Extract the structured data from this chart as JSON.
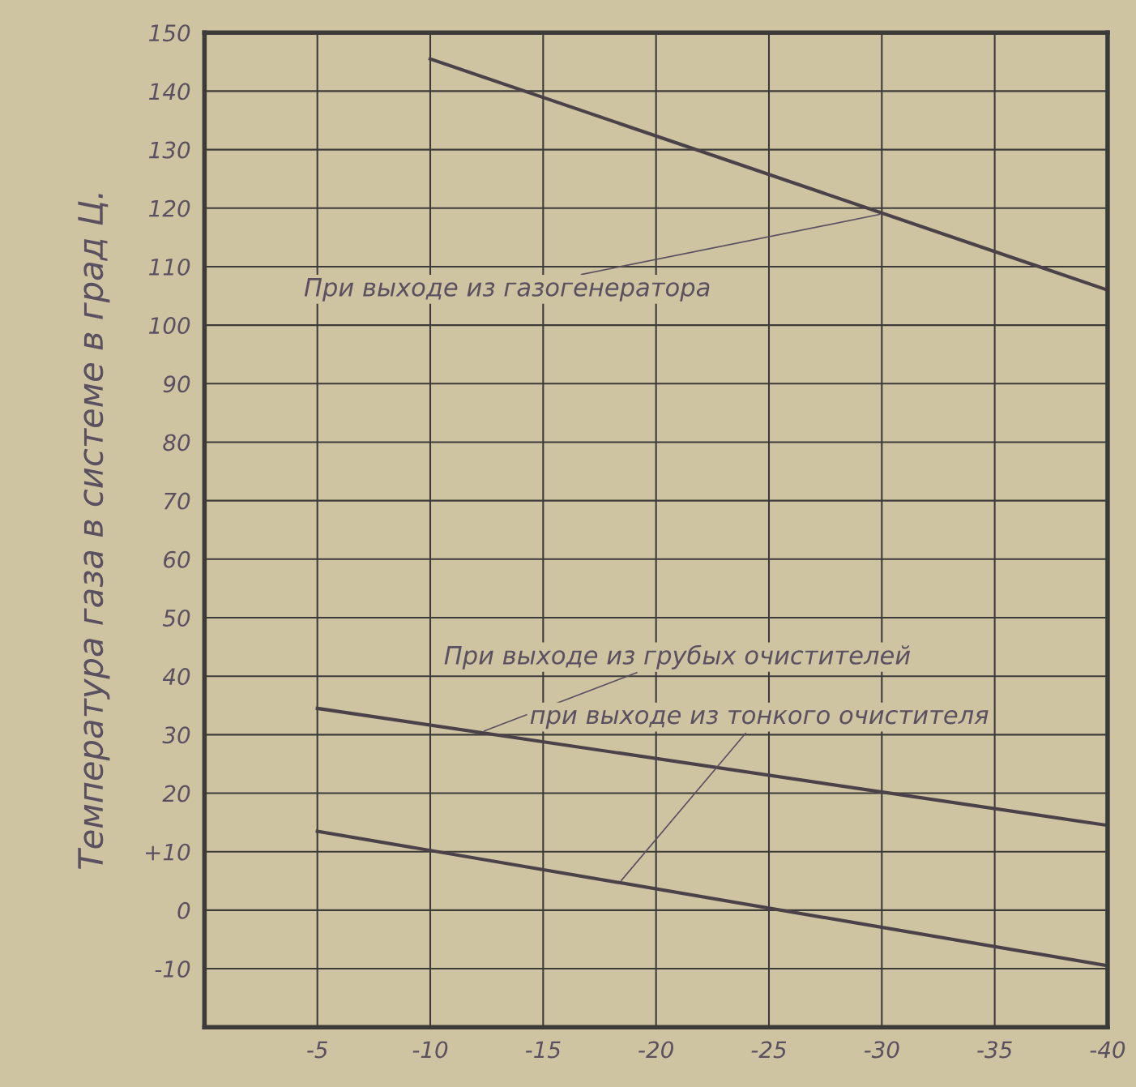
{
  "chart_data": {
    "type": "line",
    "ylabel": "Температура газа в системе в град Ц.",
    "xlim": [
      0,
      -40
    ],
    "xticks": [
      -5,
      -10,
      -15,
      -20,
      -25,
      -30,
      -35,
      -40
    ],
    "ylim": [
      -20,
      150
    ],
    "yticks": [
      -10,
      0,
      {
        "value": 10,
        "label": "+10"
      },
      20,
      30,
      40,
      50,
      60,
      70,
      80,
      90,
      100,
      110,
      120,
      130,
      140,
      150
    ],
    "grid": true,
    "legend": false,
    "marker": "none",
    "line_style": "solid",
    "series": [
      {
        "color": "#4a4248",
        "x": [
          -10,
          -40
        ],
        "values": [
          145.5,
          106
        ]
      },
      {
        "color": "#4a4248",
        "x": [
          -5,
          -40
        ],
        "values": [
          34.5,
          14.5
        ]
      },
      {
        "color": "#4a4248",
        "x": [
          -5,
          -40
        ],
        "values": [
          13.5,
          -9.5
        ]
      }
    ],
    "annotations": [
      {
        "text": "При выходе из газогенератора",
        "x": -30,
        "y": 119
      },
      {
        "text": "При выходе из грубых очистителей",
        "x": -12.3,
        "y": 30.5
      },
      {
        "text": "при выходе из тонкого очистителя",
        "x": -18.4,
        "y": 4.8
      }
    ]
  }
}
